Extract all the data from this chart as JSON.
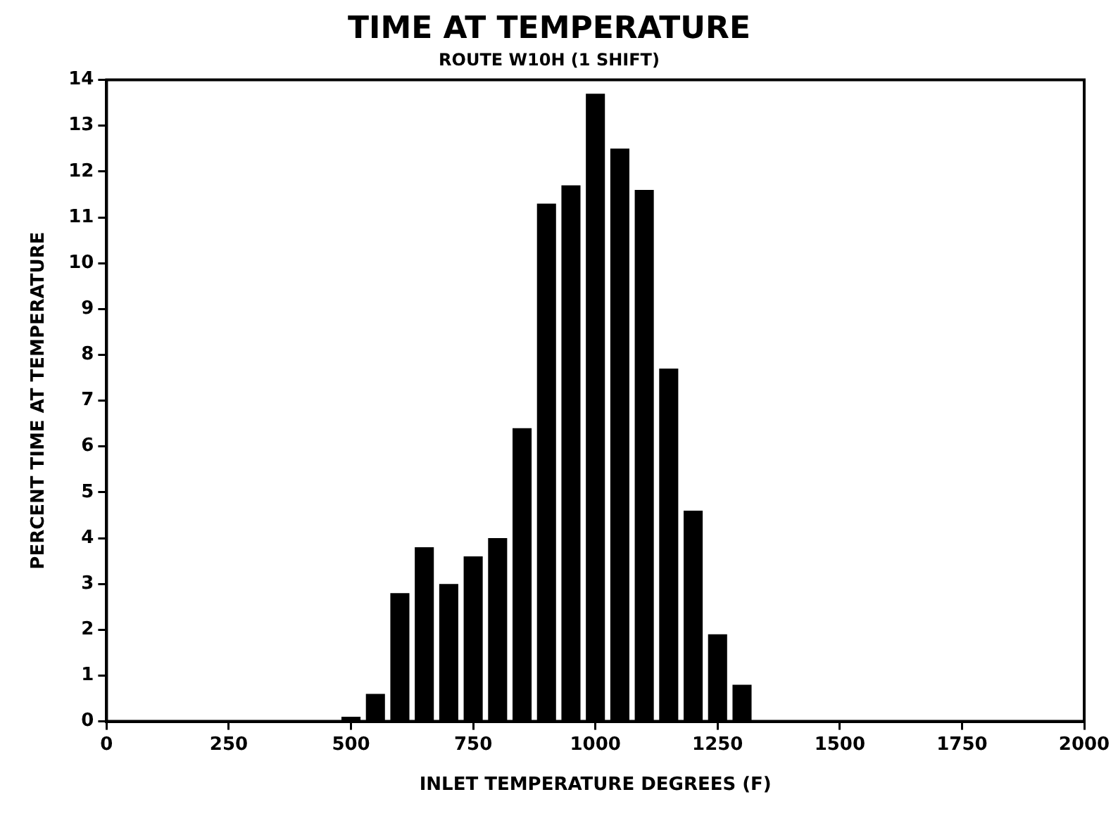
{
  "chart_data": {
    "type": "histogram",
    "title": "TIME AT TEMPERATURE",
    "subtitle": "ROUTE W10H (1 SHIFT)",
    "xlabel": "INLET TEMPERATURE DEGREES (F)",
    "ylabel": "PERCENT TIME AT TEMPERATURE",
    "bins": [
      475,
      525,
      575,
      625,
      675,
      725,
      775,
      825,
      875,
      925,
      975,
      1025,
      1075,
      1125,
      1175,
      1225,
      1275,
      1325
    ],
    "values": [
      0.1,
      0.6,
      2.8,
      3.8,
      3.0,
      3.6,
      4.0,
      6.4,
      11.3,
      11.7,
      13.7,
      12.5,
      11.6,
      7.7,
      4.6,
      1.9,
      0.8
    ],
    "color": "#000000",
    "xlim": [
      0,
      2000
    ],
    "xticks": [
      0,
      250,
      500,
      750,
      1000,
      1250,
      1500,
      1750,
      2000
    ],
    "ylim": [
      0,
      14
    ],
    "yticks": [
      0,
      1,
      2,
      3,
      4,
      5,
      6,
      7,
      8,
      9,
      10,
      11,
      12,
      13,
      14
    ],
    "grid": false,
    "legend": false
  }
}
